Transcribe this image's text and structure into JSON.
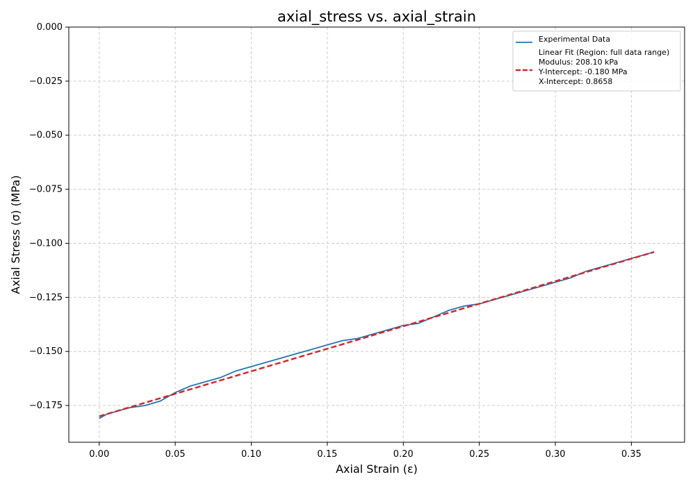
{
  "chart_data": {
    "type": "line",
    "title": "axial_stress vs. axial_strain",
    "xlabel": "Axial Strain (ε)",
    "ylabel": "Axial Stress (σ) (MPa)",
    "xlim": [
      -0.02,
      0.385
    ],
    "ylim": [
      -0.192,
      0.0
    ],
    "grid": true,
    "legend_position": "top-right",
    "x_ticks": [
      0.0,
      0.05,
      0.1,
      0.15,
      0.2,
      0.25,
      0.3,
      0.35
    ],
    "x_tick_labels": [
      "0.00",
      "0.05",
      "0.10",
      "0.15",
      "0.20",
      "0.25",
      "0.30",
      "0.35"
    ],
    "y_ticks": [
      0.0,
      -0.025,
      -0.05,
      -0.075,
      -0.1,
      -0.125,
      -0.15,
      -0.175
    ],
    "y_tick_labels": [
      "0.000",
      "−0.025",
      "−0.050",
      "−0.075",
      "−0.100",
      "−0.125",
      "−0.150",
      "−0.175"
    ],
    "series": [
      {
        "name": "Experimental Data",
        "color": "#1f77b4",
        "style": "solid",
        "x": [
          0.0,
          0.005,
          0.01,
          0.015,
          0.02,
          0.03,
          0.04,
          0.05,
          0.06,
          0.07,
          0.08,
          0.09,
          0.1,
          0.11,
          0.12,
          0.13,
          0.14,
          0.15,
          0.16,
          0.17,
          0.18,
          0.19,
          0.2,
          0.21,
          0.22,
          0.23,
          0.24,
          0.25,
          0.26,
          0.27,
          0.28,
          0.29,
          0.3,
          0.31,
          0.32,
          0.33,
          0.34,
          0.35,
          0.36,
          0.365
        ],
        "y": [
          -0.181,
          -0.179,
          -0.178,
          -0.177,
          -0.176,
          -0.175,
          -0.173,
          -0.169,
          -0.166,
          -0.164,
          -0.162,
          -0.159,
          -0.157,
          -0.155,
          -0.153,
          -0.151,
          -0.149,
          -0.147,
          -0.145,
          -0.144,
          -0.142,
          -0.14,
          -0.138,
          -0.137,
          -0.134,
          -0.131,
          -0.129,
          -0.128,
          -0.126,
          -0.124,
          -0.122,
          -0.12,
          -0.118,
          -0.116,
          -0.113,
          -0.111,
          -0.109,
          -0.107,
          -0.105,
          -0.104
        ]
      },
      {
        "name": "Linear Fit (Region: full data range)",
        "color": "#d62728",
        "style": "dashed",
        "x": [
          0.0,
          0.365
        ],
        "y": [
          -0.18,
          -0.104
        ]
      }
    ],
    "legend": {
      "entries": [
        {
          "label_lines": [
            "Experimental Data"
          ],
          "color": "#1f77b4",
          "style": "solid"
        },
        {
          "label_lines": [
            "Linear Fit (Region: full data range)",
            "Modulus: 208.10 kPa",
            "Y-Intercept: -0.180 MPa",
            "X-Intercept: 0.8658"
          ],
          "color": "#d62728",
          "style": "dashed"
        }
      ]
    }
  }
}
